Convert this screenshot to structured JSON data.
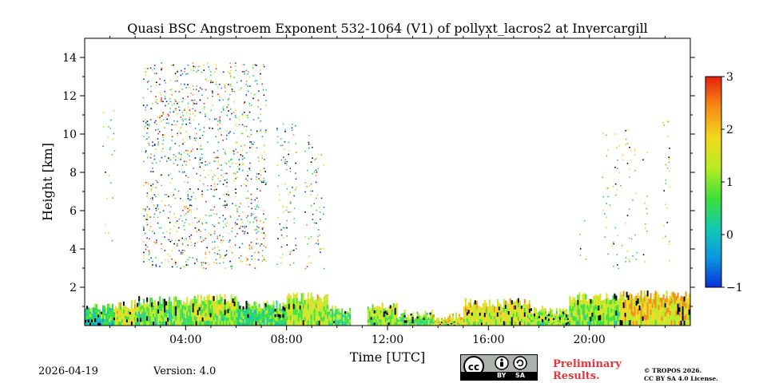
{
  "chart_data": {
    "type": "heatmap",
    "title": "Quasi BSC Angstroem Exponent 532-1064 (V1) of pollyxt_lacros2 at Invercargill",
    "xlabel": "Time [UTC]",
    "ylabel": "Height [km]",
    "xlim": [
      0,
      24
    ],
    "ylim": [
      0,
      15
    ],
    "x_ticks": [
      {
        "value": 4,
        "label": "04:00"
      },
      {
        "value": 8,
        "label": "08:00"
      },
      {
        "value": 12,
        "label": "12:00"
      },
      {
        "value": 16,
        "label": "16:00"
      },
      {
        "value": 20,
        "label": "20:00"
      }
    ],
    "y_ticks": [
      {
        "value": 2,
        "label": "2"
      },
      {
        "value": 4,
        "label": "4"
      },
      {
        "value": 6,
        "label": "6"
      },
      {
        "value": 8,
        "label": "8"
      },
      {
        "value": 10,
        "label": "10"
      },
      {
        "value": 12,
        "label": "12"
      },
      {
        "value": 14,
        "label": "14"
      }
    ],
    "colorbar": {
      "range": [
        -1,
        3
      ],
      "ticks": [
        {
          "value": 3,
          "label": "3"
        },
        {
          "value": 2,
          "label": "2"
        },
        {
          "value": 1,
          "label": "1"
        },
        {
          "value": 0,
          "label": "0"
        },
        {
          "value": -1,
          "label": "−1"
        }
      ],
      "colors": [
        "#0b2fd8",
        "#0a97e0",
        "#14c9b0",
        "#3ce03a",
        "#b8ec20",
        "#f3d81c",
        "#f58a14",
        "#e8200e"
      ]
    },
    "boundary_layer": [
      {
        "t0": 0.0,
        "t1": 1.2,
        "top": 0.9,
        "value": 0.6
      },
      {
        "t0": 1.2,
        "t1": 2.0,
        "top": 1.1,
        "value": 1.4
      },
      {
        "t0": 2.0,
        "t1": 4.2,
        "top": 1.3,
        "value": 1.0
      },
      {
        "t0": 4.2,
        "t1": 6.0,
        "top": 1.4,
        "value": 1.2
      },
      {
        "t0": 6.0,
        "t1": 8.0,
        "top": 1.1,
        "value": 0.8
      },
      {
        "t0": 8.0,
        "t1": 9.6,
        "top": 1.5,
        "value": 1.3
      },
      {
        "t0": 9.6,
        "t1": 10.5,
        "top": 0.9,
        "value": 0.9
      },
      {
        "t0": 11.2,
        "t1": 12.4,
        "top": 1.0,
        "value": 1.2
      },
      {
        "t0": 12.4,
        "t1": 13.8,
        "top": 0.6,
        "value": 0.9
      },
      {
        "t0": 13.8,
        "t1": 15.0,
        "top": 0.45,
        "value": 1.6
      },
      {
        "t0": 15.0,
        "t1": 17.6,
        "top": 1.2,
        "value": 1.5
      },
      {
        "t0": 17.6,
        "t1": 19.2,
        "top": 0.8,
        "value": 1.2
      },
      {
        "t0": 19.2,
        "t1": 21.2,
        "top": 1.5,
        "value": 1.1
      },
      {
        "t0": 21.2,
        "t1": 24.0,
        "top": 1.6,
        "value": 1.7
      }
    ],
    "scatter_regions": [
      {
        "t0": 0.7,
        "t1": 1.2,
        "h0": 4.0,
        "h1": 12.5,
        "density": 0.08,
        "vmin": -0.5,
        "vmax": 2.5
      },
      {
        "t0": 2.3,
        "t1": 7.2,
        "h0": 3.0,
        "h1": 13.8,
        "density": 0.35,
        "vmin": -1.0,
        "vmax": 3.0
      },
      {
        "t0": 7.6,
        "t1": 8.4,
        "h0": 3.2,
        "h1": 10.6,
        "density": 0.25,
        "vmin": -1.0,
        "vmax": 2.8
      },
      {
        "t0": 8.7,
        "t1": 9.5,
        "h0": 3.0,
        "h1": 10.3,
        "density": 0.25,
        "vmin": -1.0,
        "vmax": 2.8
      },
      {
        "t0": 19.6,
        "t1": 19.9,
        "h0": 3.2,
        "h1": 7.6,
        "density": 0.08,
        "vmin": 0.2,
        "vmax": 2.5
      },
      {
        "t0": 20.5,
        "t1": 21.9,
        "h0": 3.0,
        "h1": 10.3,
        "density": 0.12,
        "vmin": 0.0,
        "vmax": 2.2
      },
      {
        "t0": 22.1,
        "t1": 22.3,
        "h0": 3.0,
        "h1": 9.6,
        "density": 0.2,
        "vmin": 1.0,
        "vmax": 2.6
      },
      {
        "t0": 22.9,
        "t1": 23.2,
        "h0": 3.0,
        "h1": 11.0,
        "density": 0.2,
        "vmin": 0.8,
        "vmax": 2.6
      }
    ]
  },
  "footer": {
    "date": "2026-04-19",
    "version": "Version: 4.0",
    "license_badge": "cc-by-sa-icon",
    "badge_by": "BY",
    "badge_sa": "SA",
    "preliminary_line1": "Preliminary",
    "preliminary_line2": "Results.",
    "copyright_line1": "© TROPOS 2026.",
    "copyright_line2": "CC BY SA 4.0 License."
  }
}
